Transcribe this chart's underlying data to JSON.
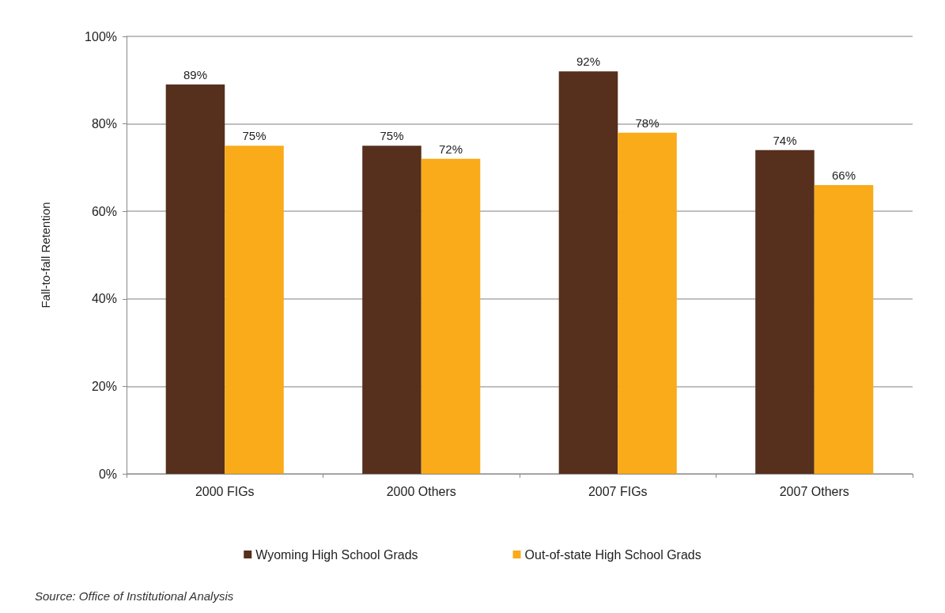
{
  "chart_data": {
    "type": "bar",
    "ylabel": "Fall-to-fall Retention",
    "categories": [
      "2000 FIGs",
      "2000 Others",
      "2007 FIGs",
      "2007 Others"
    ],
    "series": [
      {
        "name": "Wyoming High School Grads",
        "color": "#562f1d",
        "values": [
          89,
          75,
          92,
          74
        ],
        "value_labels": [
          "89%",
          "75%",
          "92%",
          "74%"
        ]
      },
      {
        "name": "Out-of-state High School Grads",
        "color": "#f9ab19",
        "values": [
          75,
          72,
          78,
          66
        ],
        "value_labels": [
          "75%",
          "72%",
          "78%",
          "66%"
        ]
      }
    ],
    "ylim": [
      0,
      100
    ],
    "yticks": [
      {
        "value": 0,
        "label": "0%"
      },
      {
        "value": 20,
        "label": "20%"
      },
      {
        "value": 40,
        "label": "40%"
      },
      {
        "value": 60,
        "label": "60%"
      },
      {
        "value": 80,
        "label": "80%"
      },
      {
        "value": 100,
        "label": "100%"
      }
    ],
    "grid": "y",
    "legend": "bottom",
    "annotations": [
      "Source: Office of Institutional Analysis"
    ]
  }
}
